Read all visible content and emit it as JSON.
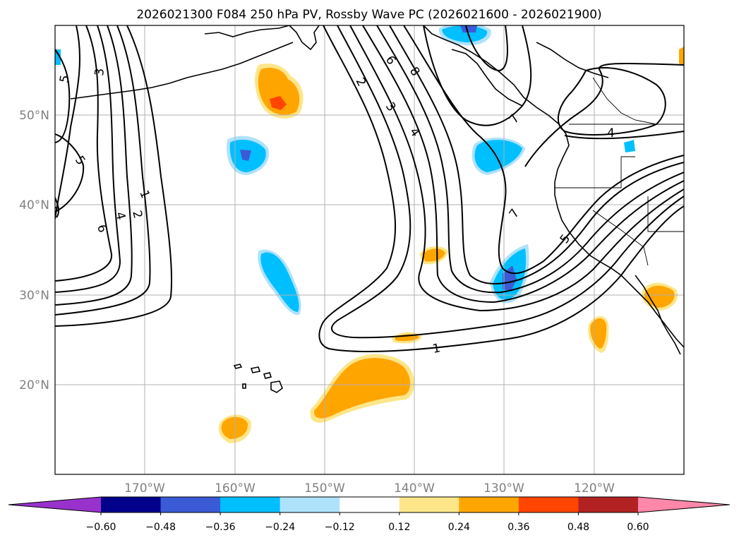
{
  "chart_data": {
    "type": "contour map",
    "title": "2026021300 F084 250 hPa PV, Rossby Wave PC (2026021600 - 2026021900)",
    "x_ticks": [
      "170°W",
      "160°W",
      "150°W",
      "140°W",
      "130°W",
      "120°W"
    ],
    "x_tick_values": [
      -170,
      -160,
      -150,
      -140,
      -130,
      -120
    ],
    "y_ticks": [
      "50°N",
      "40°N",
      "30°N",
      "20°N"
    ],
    "y_tick_values": [
      50,
      40,
      30,
      20
    ],
    "lon_range": [
      -180,
      -110
    ],
    "lat_range": [
      10,
      60
    ],
    "grid": true,
    "colorbar": {
      "orientation": "horizontal",
      "extend": "both",
      "tick_labels": [
        "−0.60",
        "−0.48",
        "−0.36",
        "−0.24",
        "−0.12",
        "0.12",
        "0.24",
        "0.36",
        "0.48",
        "0.60"
      ],
      "boundaries": [
        -0.6,
        -0.48,
        -0.36,
        -0.24,
        -0.12,
        0.12,
        0.24,
        0.36,
        0.48,
        0.6
      ],
      "colors": [
        "#9932cc",
        "#00008b",
        "#3b5bd6",
        "#00bfff",
        "#aee2fb",
        "#ffffff",
        "#fde68a",
        "#ffa500",
        "#ff4500",
        "#b22222",
        "#ff88aa"
      ]
    },
    "pv_contour_levels": [
      "1",
      "2",
      "3",
      "4",
      "5",
      "6",
      "7",
      "8"
    ],
    "pv_contour_labels_shown": [
      "5",
      "3",
      "5",
      "7",
      "1",
      "2",
      "4",
      "6",
      "2",
      "3",
      "4",
      "6",
      "8",
      "7",
      "7",
      "5",
      "1",
      "4"
    ]
  }
}
